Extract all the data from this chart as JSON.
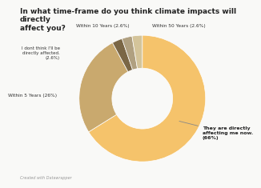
{
  "title": "In what time-frame do you think climate impacts will directly\naffect you?",
  "labels": [
    "They are directly\naffecting me now.\n(66%)",
    "Within 5 Years (26%)",
    "I dont think I'll be\ndirectly affected.\n(2.6%)",
    "Within 10 Years (2.6%)",
    "Within 50 Years (2.6%)"
  ],
  "values": [
    66,
    26,
    2.6,
    2.6,
    2.6
  ],
  "colors": [
    "#f5c36b",
    "#c9a96e",
    "#7a6645",
    "#b0a080",
    "#d4c49a"
  ],
  "background_color": "#f9f9f7",
  "footer": "Created with Datawrapper"
}
